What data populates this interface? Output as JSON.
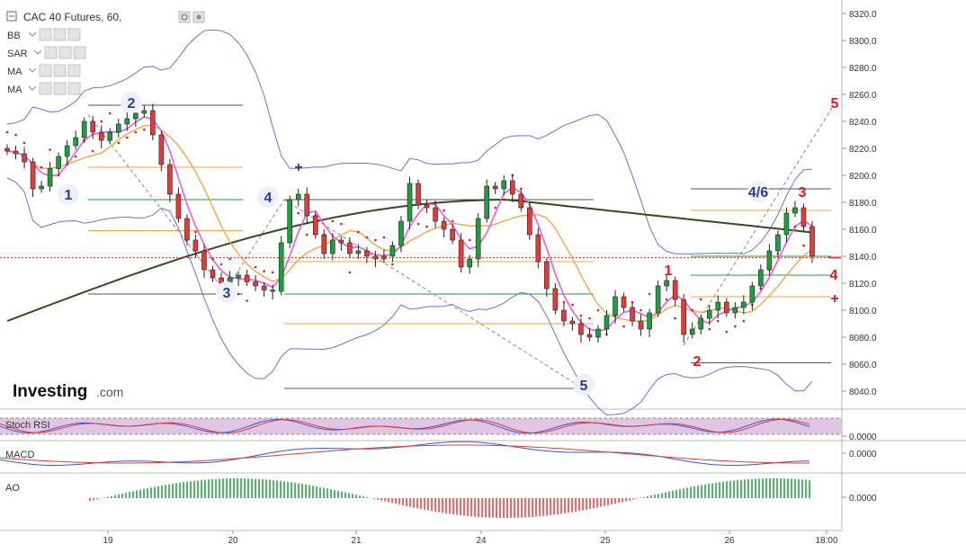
{
  "chart_data": {
    "type": "candlestick",
    "title": "CAC 40 Futures, 60,",
    "y_range": [
      8030,
      8325
    ],
    "y_ticks": [
      "8320.0",
      "8300.0",
      "8280.0",
      "8260.0",
      "8240.0",
      "8220.0",
      "8200.0",
      "8180.0",
      "8160.0",
      "8140.0",
      "8120.0",
      "8100.0",
      "8080.0",
      "8060.0",
      "8040.0"
    ],
    "x_labels": [
      "19",
      "20",
      "21",
      "24",
      "25",
      "26",
      "18:00"
    ],
    "indicators": [
      "BB",
      "SAR",
      "MA",
      "MA"
    ],
    "current_price_line": 8139,
    "candles_close": [
      8218,
      8216,
      8210,
      8190,
      8192,
      8205,
      8214,
      8222,
      8228,
      8240,
      8232,
      8226,
      8232,
      8238,
      8242,
      8246,
      8248,
      8230,
      8208,
      8186,
      8168,
      8152,
      8144,
      8130,
      8124,
      8120,
      8124,
      8126,
      8121,
      8118,
      8115,
      8114,
      8150,
      8182,
      8186,
      8170,
      8156,
      8142,
      8152,
      8150,
      8142,
      8144,
      8140,
      8138,
      8140,
      8148,
      8166,
      8194,
      8178,
      8176,
      8166,
      8160,
      8152,
      8132,
      8138,
      8168,
      8192,
      8190,
      8196,
      8186,
      8176,
      8156,
      8136,
      8116,
      8100,
      8092,
      8090,
      8082,
      8080,
      8086,
      8096,
      8110,
      8102,
      8092,
      8086,
      8098,
      8118,
      8122,
      8108,
      8082,
      8086,
      8094,
      8100,
      8106,
      8098,
      8102,
      8106,
      8118,
      8130,
      8144,
      8156,
      8172,
      8176,
      8162,
      8140
    ],
    "candles_open": [
      8220,
      8218,
      8216,
      8210,
      8190,
      8192,
      8205,
      8214,
      8222,
      8228,
      8240,
      8232,
      8226,
      8232,
      8238,
      8242,
      8246,
      8248,
      8230,
      8208,
      8186,
      8168,
      8152,
      8144,
      8130,
      8124,
      8120,
      8124,
      8126,
      8121,
      8118,
      8115,
      8114,
      8150,
      8182,
      8186,
      8170,
      8156,
      8142,
      8152,
      8150,
      8142,
      8144,
      8140,
      8138,
      8140,
      8148,
      8166,
      8194,
      8178,
      8176,
      8166,
      8160,
      8152,
      8132,
      8138,
      8168,
      8192,
      8190,
      8196,
      8186,
      8176,
      8156,
      8136,
      8116,
      8100,
      8092,
      8090,
      8082,
      8080,
      8086,
      8096,
      8110,
      8102,
      8092,
      8086,
      8098,
      8118,
      8122,
      8108,
      8082,
      8086,
      8094,
      8100,
      8106,
      8098,
      8102,
      8106,
      8118,
      8130,
      8144,
      8156,
      8172,
      8176,
      8162
    ],
    "wave_labels_blue": [
      "1",
      "2",
      "3",
      "4",
      "5",
      "4/6"
    ],
    "wave_labels_red": [
      "1",
      "2",
      "3",
      "4",
      "5",
      "+"
    ],
    "sub_panels": [
      {
        "name": "Stoch RSI",
        "value": "0.0000"
      },
      {
        "name": "MACD",
        "value": "0.0000"
      },
      {
        "name": "AO",
        "value": "0.0000"
      }
    ],
    "colors": {
      "up": "#1e9e3e",
      "down": "#e23b3b",
      "bb": "#6b6fe0",
      "ma_long": "#2f4f1f",
      "ma_fast": "#ec5bd6",
      "ma_mid": "#f5a442",
      "sar": "#e8121c",
      "price_line": "#e23b3b"
    }
  },
  "logo": {
    "main": "Investing",
    "suffix": ".com"
  }
}
